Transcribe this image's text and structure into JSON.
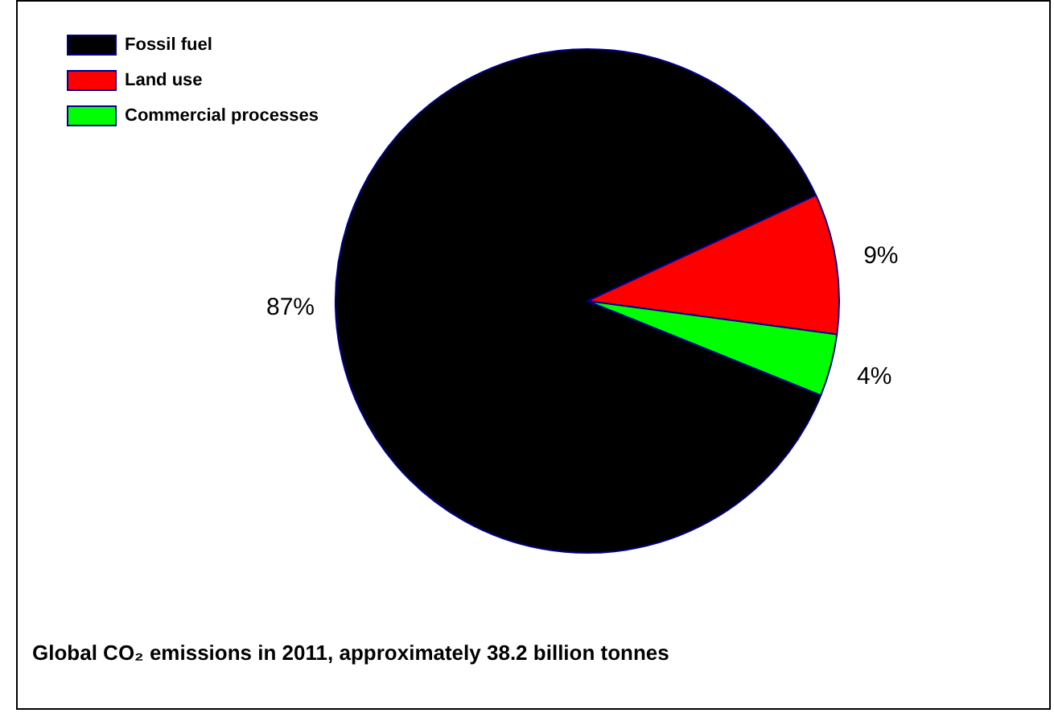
{
  "chart_data": {
    "type": "pie",
    "categories": [
      "Fossil fuel",
      "Land use",
      "Commercial processes"
    ],
    "values": [
      87,
      9,
      4
    ],
    "colors": [
      "#000000",
      "#ff0000",
      "#00ff00"
    ],
    "value_labels": [
      "87%",
      "9%",
      "4%"
    ],
    "legend": "top left",
    "annotations": [
      "Global CO₂ emissions in 2011,  approximately 38.2 billion tonnes"
    ]
  }
}
